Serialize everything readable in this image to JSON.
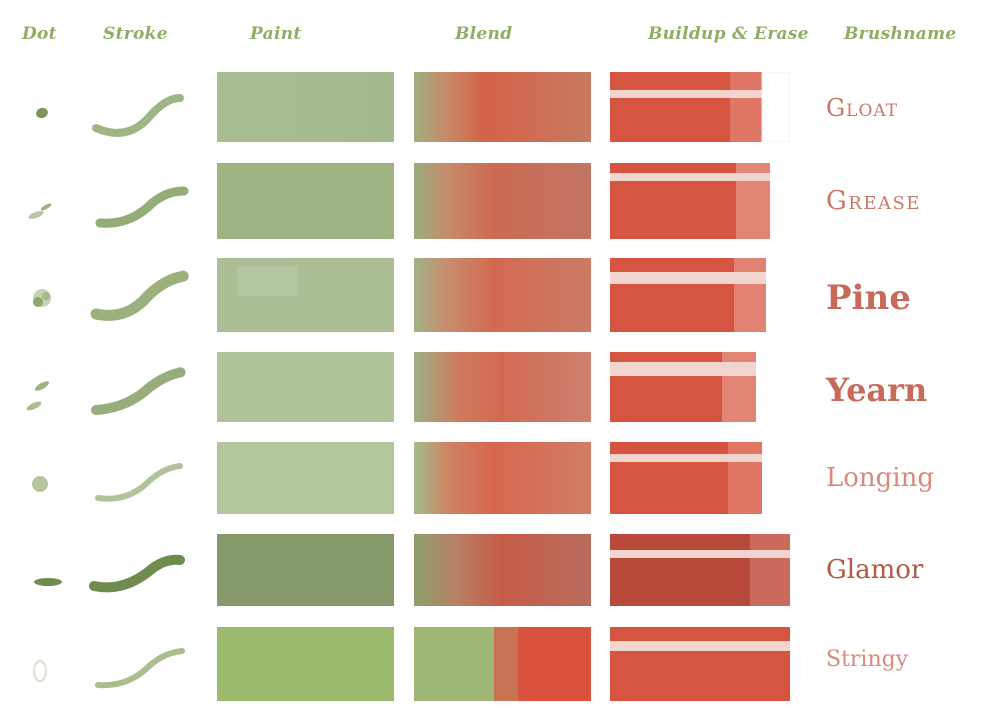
{
  "headers": {
    "dot": "Dot",
    "stroke": "Stroke",
    "paint": "Paint",
    "blend": "Blend",
    "buildup": "Buildup & Erase",
    "brushname": "Brushname"
  },
  "brushes": [
    {
      "name": "Gloat"
    },
    {
      "name": "Grease"
    },
    {
      "name": "Pine"
    },
    {
      "name": "Yearn"
    },
    {
      "name": "Longing"
    },
    {
      "name": "Glamor"
    },
    {
      "name": "Stringy"
    }
  ],
  "colors": {
    "header_green": "#8fae63",
    "paint_green": "#a5b98e",
    "blend_red": "#cf5a44",
    "erase_red": "#d65541",
    "name_red": "#c9786a"
  }
}
